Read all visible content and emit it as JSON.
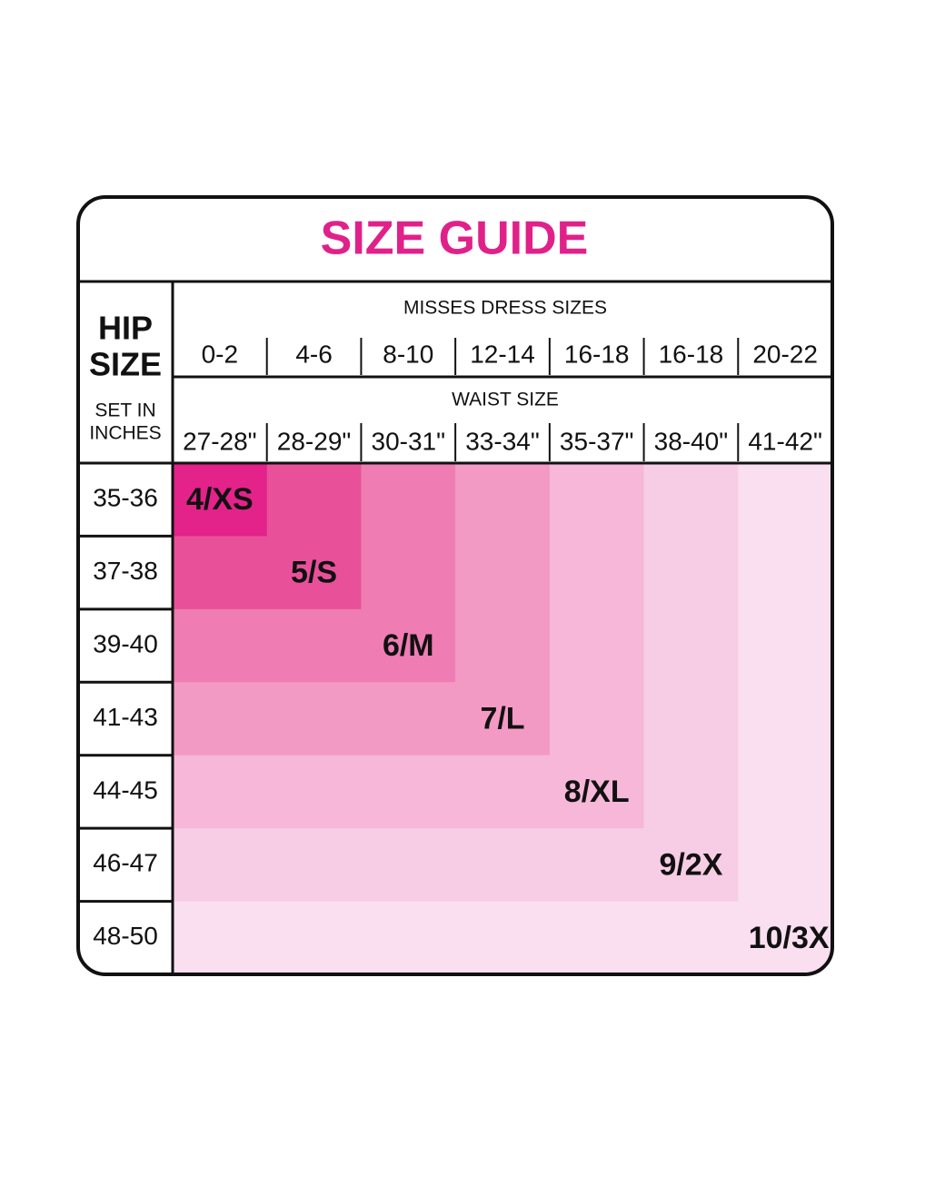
{
  "header": {
    "title": "SIZE GUIDE"
  },
  "hip_header": {
    "line1": "HIP",
    "line2": "SIZE",
    "note1": "SET IN",
    "note2": "INCHES"
  },
  "misses": {
    "label": "MISSES DRESS SIZES",
    "values": [
      "0-2",
      "4-6",
      "8-10",
      "12-14",
      "16-18",
      "16-18",
      "20-22"
    ]
  },
  "waist": {
    "label": "WAIST SIZE",
    "values": [
      "27-28\"",
      "28-29\"",
      "30-31\"",
      "33-34\"",
      "35-37\"",
      "38-40\"",
      "41-42\""
    ]
  },
  "rows": [
    {
      "hip": "35-36",
      "size": "4/XS"
    },
    {
      "hip": "37-38",
      "size": "5/S"
    },
    {
      "hip": "39-40",
      "size": "6/M"
    },
    {
      "hip": "41-43",
      "size": "7/L"
    },
    {
      "hip": "44-45",
      "size": "8/XL"
    },
    {
      "hip": "46-47",
      "size": "9/2X"
    },
    {
      "hip": "48-50",
      "size": "10/3X"
    }
  ]
}
